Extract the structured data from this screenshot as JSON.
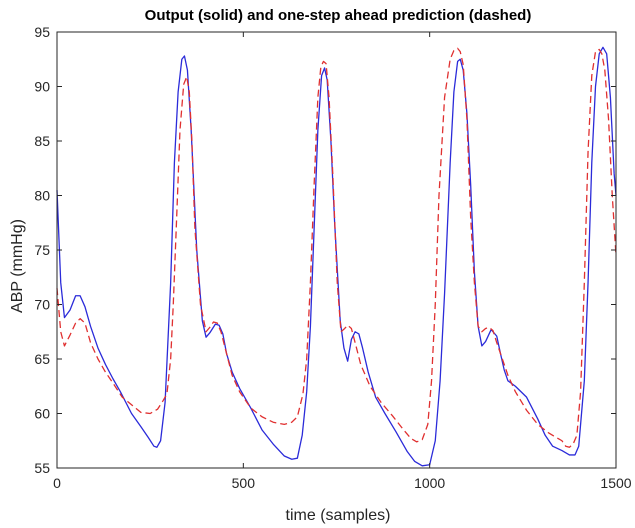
{
  "chart_data": {
    "type": "line",
    "title": "Output (solid) and one-step ahead prediction (dashed)",
    "xlabel": "time (samples)",
    "ylabel": "ABP (mmHg)",
    "xlim": [
      0,
      1500
    ],
    "ylim": [
      55,
      95
    ],
    "xticks": [
      0,
      500,
      1000,
      1500
    ],
    "yticks": [
      55,
      60,
      65,
      70,
      75,
      80,
      85,
      90,
      95
    ],
    "grid": false,
    "legend": "none",
    "series": [
      {
        "style": "solid",
        "color": "#2b2bd9",
        "x": [
          0,
          10,
          20,
          35,
          50,
          62,
          75,
          90,
          110,
          130,
          150,
          170,
          200,
          225,
          245,
          260,
          268,
          278,
          290,
          305,
          315,
          325,
          335,
          342,
          350,
          360,
          375,
          390,
          400,
          410,
          425,
          435,
          445,
          455,
          470,
          490,
          520,
          550,
          580,
          610,
          630,
          645,
          658,
          670,
          680,
          690,
          700,
          710,
          718,
          725,
          735,
          745,
          760,
          770,
          780,
          790,
          800,
          810,
          820,
          835,
          855,
          880,
          910,
          940,
          960,
          980,
          1000,
          1015,
          1028,
          1040,
          1055,
          1065,
          1075,
          1082,
          1090,
          1100,
          1110,
          1120,
          1130,
          1140,
          1150,
          1165,
          1180,
          1190,
          1200,
          1210,
          1230,
          1260,
          1290,
          1310,
          1330,
          1355,
          1375,
          1390,
          1400,
          1415,
          1425,
          1435,
          1445,
          1455,
          1465,
          1475,
          1485,
          1495,
          1500
        ],
        "y": [
          80.5,
          72,
          68.8,
          69.5,
          70.8,
          70.8,
          69.8,
          68,
          66,
          64.5,
          63.2,
          62,
          60,
          58.8,
          57.8,
          57,
          56.9,
          57.5,
          61,
          72,
          83,
          89.5,
          92.5,
          92.8,
          91.5,
          86,
          75,
          68.5,
          67,
          67.4,
          68.2,
          68.1,
          67.3,
          65.5,
          63.8,
          62.3,
          60.5,
          58.5,
          57.2,
          56.1,
          55.8,
          55.9,
          58,
          62,
          68,
          77,
          86,
          91,
          91.7,
          90.6,
          85,
          77.5,
          68.5,
          66,
          64.8,
          66.8,
          67.5,
          67.3,
          66,
          63.8,
          61.5,
          60,
          58.3,
          56.5,
          55.6,
          55.2,
          55.3,
          57.5,
          63,
          71,
          83,
          89.5,
          92.3,
          92.5,
          91.5,
          87.5,
          81,
          73,
          68,
          66.2,
          66.6,
          67.7,
          67.1,
          65.5,
          64,
          63,
          62.5,
          61.5,
          59.5,
          58,
          57,
          56.6,
          56.2,
          56.2,
          57,
          63,
          72,
          83,
          90,
          93,
          93.6,
          93,
          89,
          82,
          80
        ]
      },
      {
        "style": "dashed",
        "color": "#e03030",
        "x": [
          0,
          10,
          20,
          35,
          50,
          62,
          75,
          90,
          110,
          130,
          150,
          175,
          200,
          225,
          250,
          270,
          285,
          295,
          305,
          312,
          320,
          330,
          340,
          348,
          355,
          362,
          370,
          385,
          400,
          410,
          420,
          430,
          440,
          455,
          470,
          490,
          520,
          550,
          580,
          610,
          630,
          645,
          660,
          670,
          680,
          690,
          700,
          708,
          715,
          722,
          730,
          740,
          752,
          762,
          772,
          780,
          790,
          800,
          815,
          840,
          870,
          900,
          930,
          950,
          965,
          980,
          995,
          1005,
          1015,
          1025,
          1040,
          1055,
          1065,
          1075,
          1082,
          1090,
          1100,
          1110,
          1120,
          1130,
          1140,
          1150,
          1160,
          1170,
          1180,
          1195,
          1210,
          1230,
          1260,
          1290,
          1320,
          1340,
          1355,
          1365,
          1375,
          1385,
          1395,
          1405,
          1415,
          1425,
          1435,
          1445,
          1455,
          1462,
          1470,
          1480,
          1490,
          1500
        ],
        "y": [
          71.5,
          67.5,
          66.2,
          67.2,
          68.3,
          68.7,
          68.3,
          66.5,
          65,
          63.8,
          62.8,
          61.5,
          60.8,
          60.1,
          60,
          60.4,
          61.2,
          61.8,
          65,
          70,
          77,
          86,
          90.2,
          90.9,
          89.5,
          85,
          77,
          70,
          67.5,
          67.9,
          68.4,
          68.3,
          67.5,
          65.5,
          63.5,
          62,
          60.5,
          59.7,
          59.2,
          59,
          59.2,
          59.7,
          61.8,
          65,
          72,
          81,
          89,
          91.8,
          92.3,
          92.1,
          89,
          82,
          72,
          67.5,
          67.8,
          68.1,
          67.8,
          66.5,
          64.5,
          62.5,
          61,
          59.8,
          58.5,
          57.7,
          57.4,
          57.6,
          59,
          63,
          70,
          80,
          89,
          92.5,
          93.3,
          93.5,
          93.2,
          92,
          87,
          78,
          72,
          68,
          67.5,
          67.8,
          67.9,
          67.6,
          66.5,
          65,
          63.5,
          62,
          60.3,
          59,
          58.2,
          57.8,
          57.5,
          57,
          56.9,
          57.2,
          58,
          62,
          72,
          84,
          91,
          93.2,
          93.4,
          93,
          91.5,
          87,
          80,
          74.5
        ]
      }
    ]
  }
}
